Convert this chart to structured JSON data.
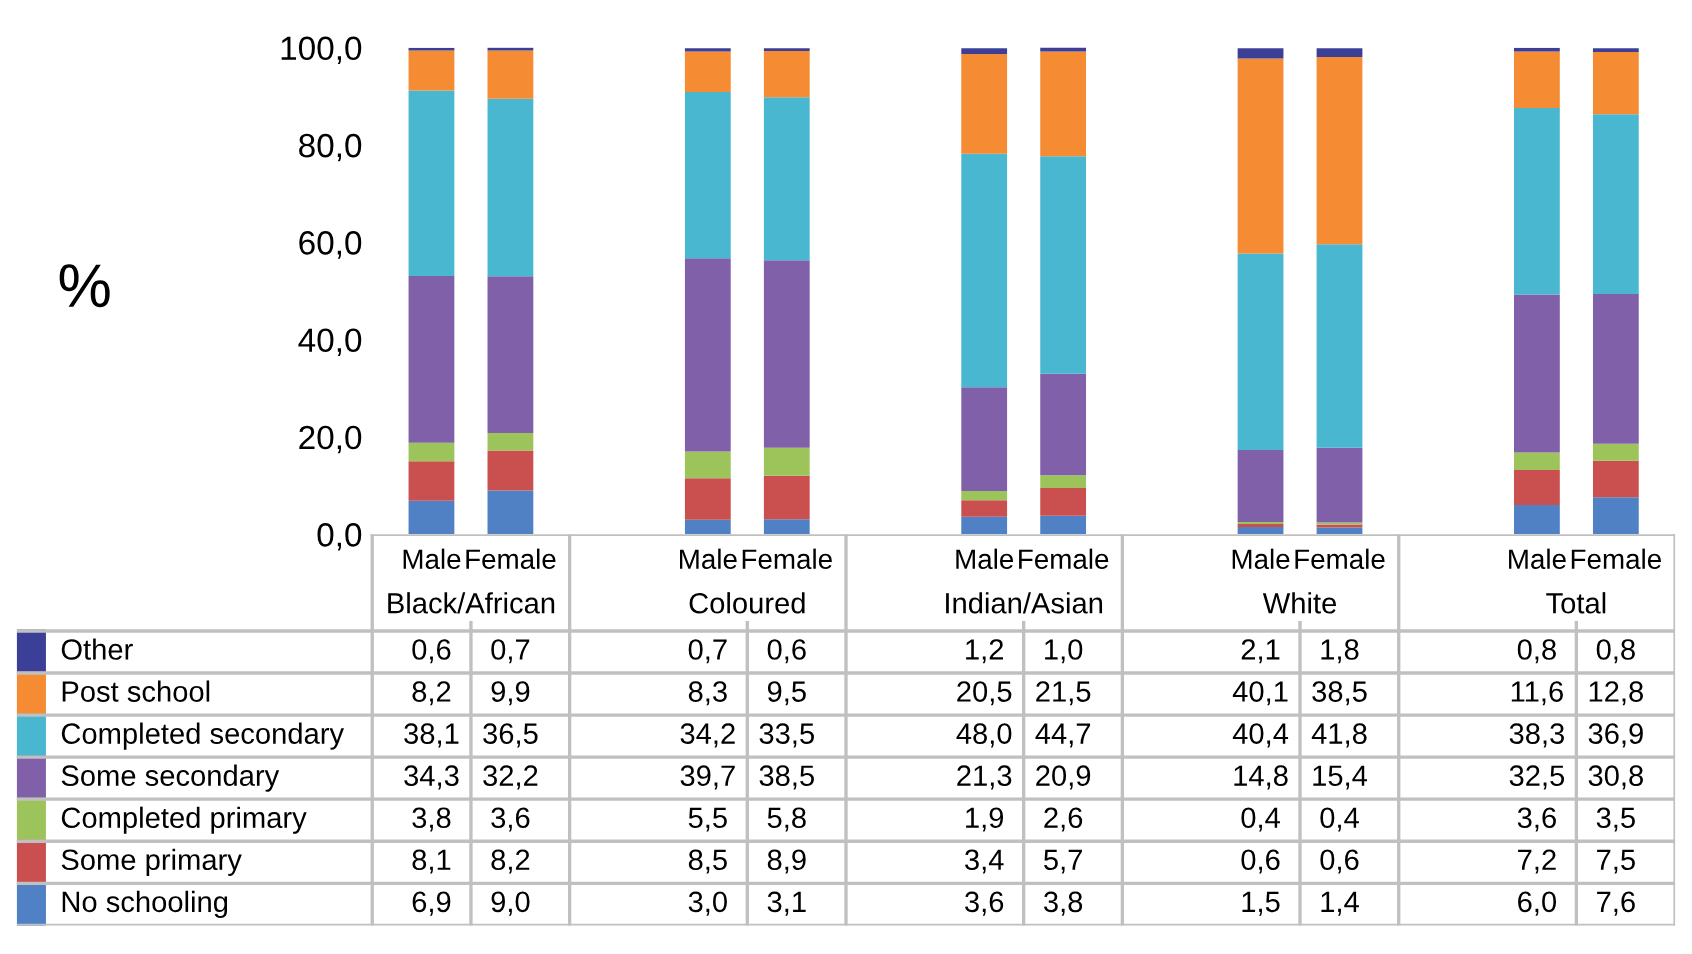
{
  "chart_data": {
    "type": "bar",
    "stacked": true,
    "ylabel": "%",
    "categories": [
      "Male",
      "Female",
      "Male",
      "Female",
      "Male",
      "Female",
      "Male",
      "Female",
      "Male",
      "Female"
    ],
    "annotations": [
      "Black/African",
      "Coloured",
      "Indian/Asian",
      "White",
      "Total"
    ],
    "series": [
      {
        "name": "No schooling",
        "color": "#4f81c4",
        "values": [
          6.9,
          9.0,
          3.0,
          3.1,
          3.6,
          3.8,
          1.5,
          1.4,
          6.0,
          7.6
        ],
        "value_labels": [
          "6,9",
          "9,0",
          "3,0",
          "3,1",
          "3,6",
          "3,8",
          "1,5",
          "1,4",
          "6,0",
          "7,6"
        ]
      },
      {
        "name": "Some primary",
        "color": "#c9504f",
        "values": [
          8.1,
          8.2,
          8.5,
          8.9,
          3.4,
          5.7,
          0.6,
          0.6,
          7.2,
          7.5
        ],
        "value_labels": [
          "8,1",
          "8,2",
          "8,5",
          "8,9",
          "3,4",
          "5,7",
          "0,6",
          "0,6",
          "7,2",
          "7,5"
        ]
      },
      {
        "name": "Completed primary",
        "color": "#9dc45a",
        "values": [
          3.8,
          3.6,
          5.5,
          5.8,
          1.9,
          2.6,
          0.4,
          0.4,
          3.6,
          3.5
        ],
        "value_labels": [
          "3,8",
          "3,6",
          "5,5",
          "5,8",
          "1,9",
          "2,6",
          "0,4",
          "0,4",
          "3,6",
          "3,5"
        ]
      },
      {
        "name": "Some secondary",
        "color": "#8060a8",
        "values": [
          34.3,
          32.2,
          39.7,
          38.5,
          21.3,
          20.9,
          14.8,
          15.4,
          32.5,
          30.8
        ],
        "value_labels": [
          "34,3",
          "32,2",
          "39,7",
          "38,5",
          "21,3",
          "20,9",
          "14,8",
          "15,4",
          "32,5",
          "30,8"
        ]
      },
      {
        "name": "Completed secondary",
        "color": "#4ab7d1",
        "values": [
          38.1,
          36.5,
          34.2,
          33.5,
          48.0,
          44.7,
          40.4,
          41.8,
          38.3,
          36.9
        ],
        "value_labels": [
          "38,1",
          "36,5",
          "34,2",
          "33,5",
          "48,0",
          "44,7",
          "40,4",
          "41,8",
          "38,3",
          "36,9"
        ]
      },
      {
        "name": "Post school",
        "color": "#f58b33",
        "values": [
          8.2,
          9.9,
          8.3,
          9.5,
          20.5,
          21.5,
          40.1,
          38.5,
          11.6,
          12.8
        ],
        "value_labels": [
          "8,2",
          "9,9",
          "8,3",
          "9,5",
          "20,5",
          "21,5",
          "40,1",
          "38,5",
          "11,6",
          "12,8"
        ]
      },
      {
        "name": "Other",
        "color": "#3c3f97",
        "values": [
          0.6,
          0.7,
          0.7,
          0.6,
          1.2,
          1.0,
          2.1,
          1.8,
          0.8,
          0.8
        ],
        "value_labels": [
          "0,6",
          "0,7",
          "0,7",
          "0,6",
          "1,2",
          "1,0",
          "2,1",
          "1,8",
          "0,8",
          "0,8"
        ]
      }
    ],
    "ylim": [
      0,
      100
    ],
    "yticks": [
      {
        "value": 0,
        "label": "0,0"
      },
      {
        "value": 20,
        "label": "20,0"
      },
      {
        "value": 40,
        "label": "40,0"
      },
      {
        "value": 60,
        "label": "60,0"
      },
      {
        "value": 80,
        "label": "80,0"
      },
      {
        "value": 100,
        "label": "100,0"
      }
    ],
    "legend": "bottom",
    "grid": false
  }
}
